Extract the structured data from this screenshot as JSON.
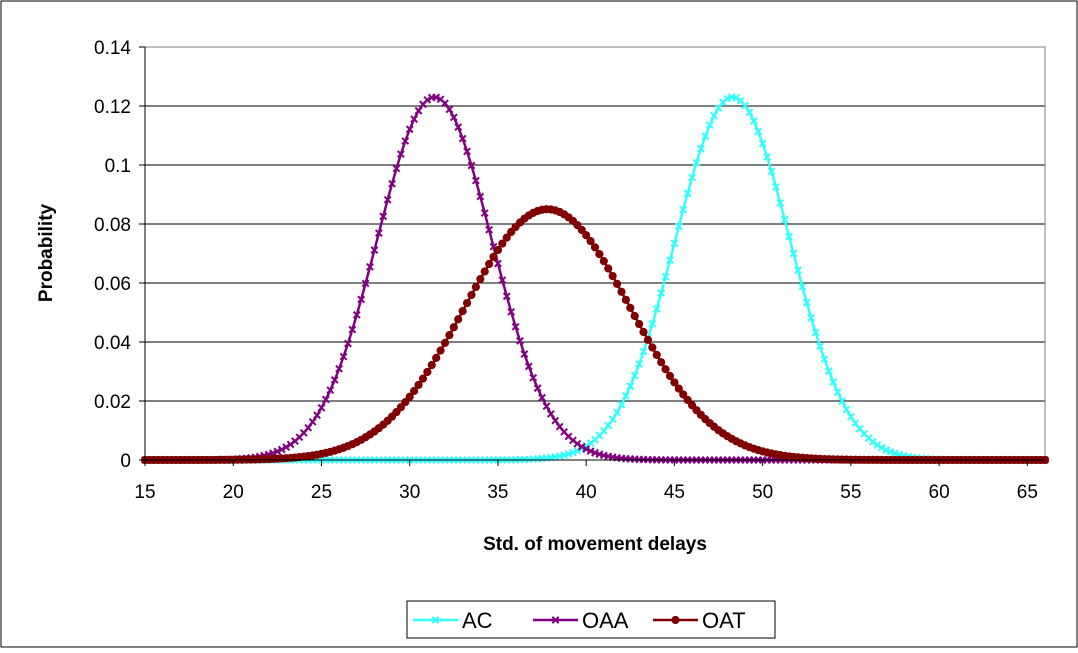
{
  "chart_data": {
    "type": "line",
    "title": "",
    "xlabel": "Std. of movement delays",
    "ylabel": "Probability",
    "xlim": [
      15,
      66
    ],
    "ylim": [
      0,
      0.14
    ],
    "x_ticks": [
      "15",
      "20",
      "25",
      "30",
      "35",
      "40",
      "45",
      "50",
      "55",
      "60",
      "65"
    ],
    "y_ticks": [
      "0",
      "0.02",
      "0.04",
      "0.06",
      "0.08",
      "0.1",
      "0.12",
      "0.14"
    ],
    "grid": "horizontal",
    "legend_position": "bottom",
    "x_step": 0.25,
    "series": [
      {
        "name": "AC",
        "color": "#33FFFF",
        "marker": "x-cross",
        "distribution": "normal",
        "mean": 48.3,
        "std": 3.25,
        "peak": 0.123
      },
      {
        "name": "OAA",
        "color": "#800080",
        "marker": "x-cross",
        "distribution": "normal",
        "mean": 31.4,
        "std": 3.25,
        "peak": 0.123
      },
      {
        "name": "OAT",
        "color": "#800000",
        "marker": "circle",
        "distribution": "normal",
        "mean": 37.8,
        "std": 4.7,
        "peak": 0.085
      }
    ]
  }
}
